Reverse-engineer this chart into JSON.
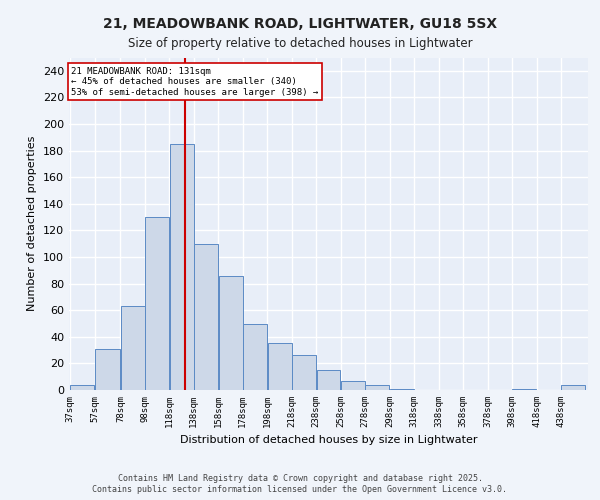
{
  "title_line1": "21, MEADOWBANK ROAD, LIGHTWATER, GU18 5SX",
  "title_line2": "Size of property relative to detached houses in Lightwater",
  "xlabel": "Distribution of detached houses by size in Lightwater",
  "ylabel": "Number of detached properties",
  "bin_edges": [
    37,
    57,
    78,
    98,
    118,
    138,
    158,
    178,
    198,
    218,
    238,
    258,
    278,
    298,
    318,
    338,
    358,
    378,
    398,
    418,
    438,
    458
  ],
  "bar_heights": [
    4,
    31,
    63,
    130,
    185,
    110,
    86,
    50,
    35,
    26,
    15,
    7,
    4,
    1,
    0,
    0,
    0,
    0,
    1,
    0,
    4
  ],
  "bar_color": "#cdd8e8",
  "bar_edge_color": "#5b8ac5",
  "bg_color": "#e8eef8",
  "grid_color": "#ffffff",
  "vline_x": 131,
  "vline_color": "#cc0000",
  "annotation_text": "21 MEADOWBANK ROAD: 131sqm\n← 45% of detached houses are smaller (340)\n53% of semi-detached houses are larger (398) →",
  "annotation_box_color": "#ffffff",
  "annotation_box_edge": "#cc0000",
  "ylim": [
    0,
    250
  ],
  "yticks": [
    0,
    20,
    40,
    60,
    80,
    100,
    120,
    140,
    160,
    180,
    200,
    220,
    240
  ],
  "fig_bg_color": "#f0f4fa",
  "footer_line1": "Contains HM Land Registry data © Crown copyright and database right 2025.",
  "footer_line2": "Contains public sector information licensed under the Open Government Licence v3.0.",
  "tick_labels": [
    "37sqm",
    "57sqm",
    "78sqm",
    "98sqm",
    "118sqm",
    "138sqm",
    "158sqm",
    "178sqm",
    "198sqm",
    "218sqm",
    "238sqm",
    "258sqm",
    "278sqm",
    "298sqm",
    "318sqm",
    "338sqm",
    "358sqm",
    "378sqm",
    "398sqm",
    "418sqm",
    "438sqm"
  ]
}
